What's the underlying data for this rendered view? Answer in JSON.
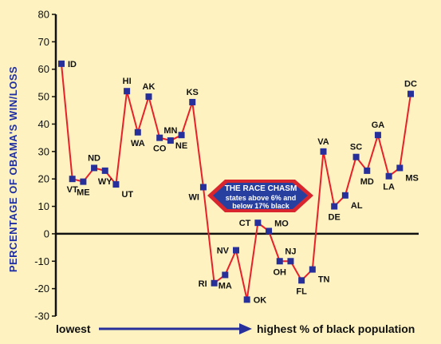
{
  "chart_data": {
    "type": "line",
    "ylabel": "PERCENTAGE OF OBAMA'S WIN/LOSS",
    "xlabel_left": "lowest",
    "xlabel_right": "highest % of black population",
    "ylim": [
      -30,
      80
    ],
    "yticks": [
      80,
      70,
      60,
      50,
      40,
      30,
      20,
      10,
      0,
      -10,
      -20,
      -30
    ],
    "grid": false,
    "line_color": "#e8202a",
    "marker_color": "#27309a",
    "points": [
      {
        "x": "ID",
        "y": 62,
        "label_pos": "right"
      },
      {
        "x": "VT",
        "y": 20,
        "label_pos": "below"
      },
      {
        "x": "ME",
        "y": 19,
        "label_pos": "below"
      },
      {
        "x": "ND",
        "y": 24,
        "label_pos": "above"
      },
      {
        "x": "WY",
        "y": 23,
        "label_pos": "below"
      },
      {
        "x": "UT",
        "y": 18,
        "label_pos": "below-right"
      },
      {
        "x": "HI",
        "y": 52,
        "label_pos": "above"
      },
      {
        "x": "WA",
        "y": 37,
        "label_pos": "below"
      },
      {
        "x": "AK",
        "y": 50,
        "label_pos": "above"
      },
      {
        "x": "CO",
        "y": 35,
        "label_pos": "below"
      },
      {
        "x": "MN",
        "y": 34,
        "label_pos": "above"
      },
      {
        "x": "NE",
        "y": 36,
        "label_pos": "below"
      },
      {
        "x": "KS",
        "y": 48,
        "label_pos": "above"
      },
      {
        "x": "WI",
        "y": 17,
        "label_pos": "below-left"
      },
      {
        "x": "RI",
        "y": -18,
        "label_pos": "left"
      },
      {
        "x": "MA",
        "y": -15,
        "label_pos": "below"
      },
      {
        "x": "NV",
        "y": -6,
        "label_pos": "left"
      },
      {
        "x": "OK",
        "y": -24,
        "label_pos": "right"
      },
      {
        "x": "CT",
        "y": 4,
        "label_pos": "left"
      },
      {
        "x": "MO",
        "y": 1,
        "label_pos": "above-right"
      },
      {
        "x": "OH",
        "y": -10,
        "label_pos": "below"
      },
      {
        "x": "NJ",
        "y": -10,
        "label_pos": "above"
      },
      {
        "x": "FL",
        "y": -17,
        "label_pos": "below"
      },
      {
        "x": "TN",
        "y": -13,
        "label_pos": "below-right"
      },
      {
        "x": "VA",
        "y": 30,
        "label_pos": "above"
      },
      {
        "x": "DE",
        "y": 10,
        "label_pos": "below"
      },
      {
        "x": "AL",
        "y": 14,
        "label_pos": "below-right"
      },
      {
        "x": "SC",
        "y": 28,
        "label_pos": "above"
      },
      {
        "x": "MD",
        "y": 23,
        "label_pos": "below"
      },
      {
        "x": "GA",
        "y": 36,
        "label_pos": "above"
      },
      {
        "x": "LA",
        "y": 21,
        "label_pos": "below"
      },
      {
        "x": "MS",
        "y": 24,
        "label_pos": "below-right"
      },
      {
        "x": "DC",
        "y": 51,
        "label_pos": "above"
      }
    ],
    "callout": {
      "title": "THE RACE CHASM",
      "line1": "states above 6% and",
      "line2": "below 17% black",
      "fill": "#d9262e",
      "inner_fill": "#2740a0"
    }
  }
}
